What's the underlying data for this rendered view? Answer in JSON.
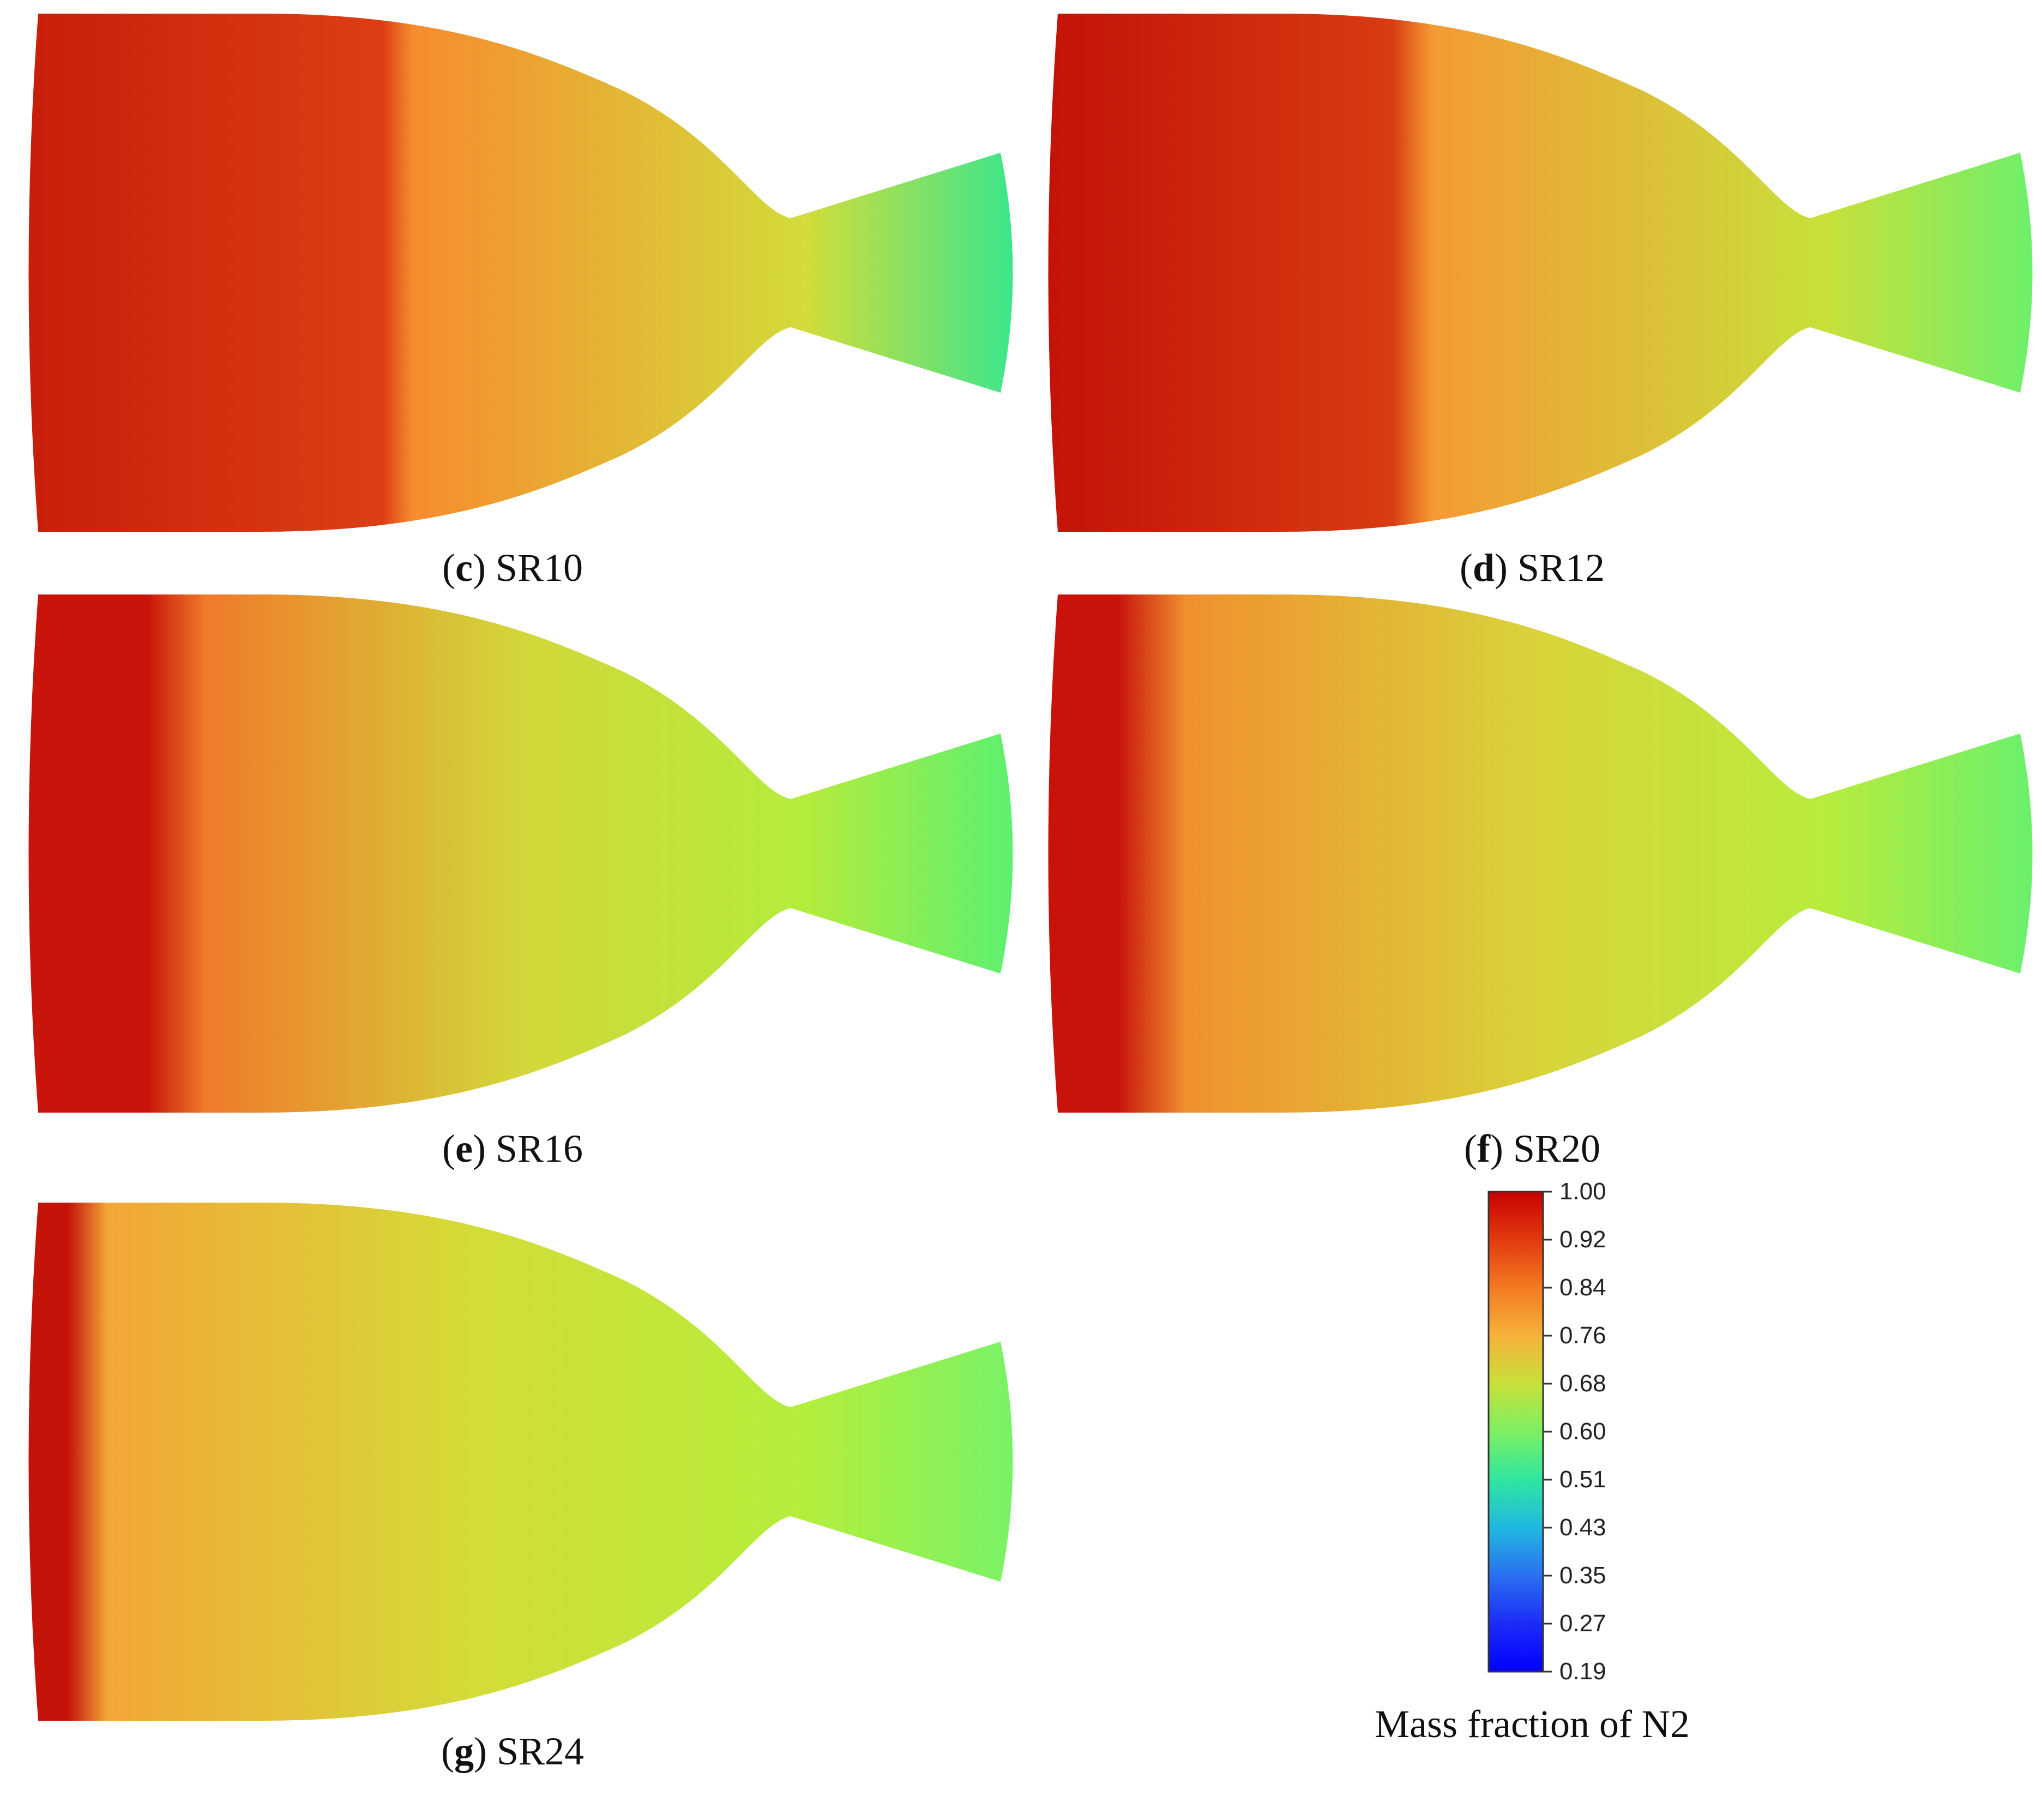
{
  "figure": {
    "panels": [
      {
        "id": "c",
        "letter": "c",
        "label": "SR10",
        "colors": {
          "inlet": "#c81e0a",
          "chamber": "#dc3f14",
          "mid": "#f68c2e",
          "throat": "#d2dc3a",
          "exit": "#3ce68c"
        }
      },
      {
        "id": "d",
        "letter": "d",
        "label": "SR12",
        "colors": {
          "inlet": "#c41208",
          "chamber": "#d83c12",
          "mid": "#f49a34",
          "throat": "#c8e03a",
          "exit": "#6ef06a"
        }
      },
      {
        "id": "e",
        "letter": "e",
        "label": "SR16",
        "colors": {
          "inlet": "#c8140a",
          "chamber": "#f07a2a",
          "mid": "#d2d73a",
          "throat": "#b4ec3c",
          "exit": "#5cf070"
        }
      },
      {
        "id": "f",
        "letter": "f",
        "label": "SR20",
        "colors": {
          "inlet": "#c8120a",
          "chamber": "#f0902e",
          "mid": "#d8d43a",
          "throat": "#b8ec3c",
          "exit": "#6af06c"
        }
      },
      {
        "id": "g",
        "letter": "g",
        "label": "SR24",
        "colors": {
          "inlet": "#c4140a",
          "chamber": "#f2a636",
          "mid": "#d4dc38",
          "throat": "#b4ee3c",
          "exit": "#78f266"
        }
      }
    ],
    "colorbar": {
      "title": "Mass fraction of N2",
      "ticks": [
        "1.00",
        "0.92",
        "0.84",
        "0.76",
        "0.68",
        "0.60",
        "0.51",
        "0.43",
        "0.35",
        "0.27",
        "0.19"
      ],
      "colors": [
        "#c80000",
        "#e23a10",
        "#f47a22",
        "#f6b23a",
        "#c8e03a",
        "#7cf062",
        "#30e6a0",
        "#20b8e0",
        "#2a70f0",
        "#1c2cf6",
        "#0000ff"
      ]
    }
  }
}
